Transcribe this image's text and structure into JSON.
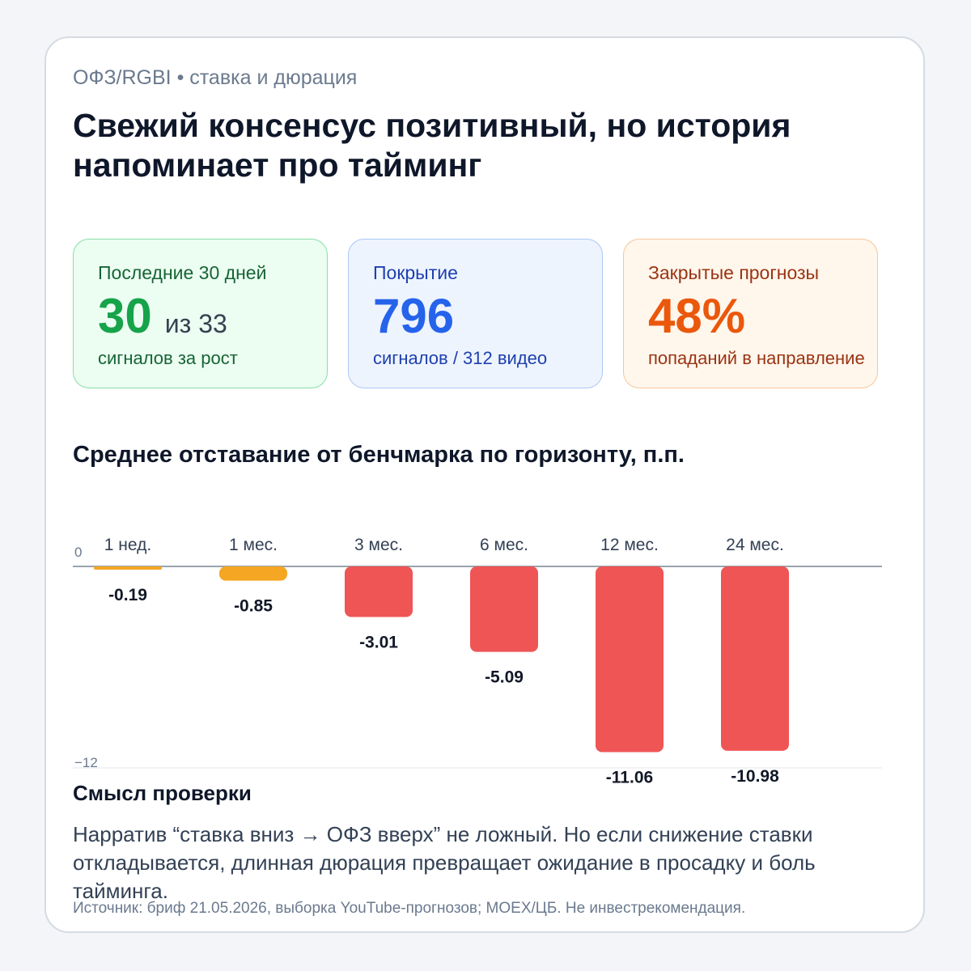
{
  "header": {
    "eyebrow": "ОФЗ/RGBI • ставка и дюрация",
    "title": "Свежий консенсус позитивный, но история напоминает про тайминг"
  },
  "kpis": [
    {
      "label": "Последние 30 дней",
      "value": "30",
      "value_suffix": "из 33",
      "sub": "сигналов за рост"
    },
    {
      "label": "Покрытие",
      "value": "796",
      "sub": "сигналов / 312 видео"
    },
    {
      "label": "Закрытые прогнозы",
      "value": "48%",
      "sub": "попаданий в направление"
    }
  ],
  "chart_data": {
    "type": "bar",
    "title": "Среднее отставание от бенчмарка по горизонту, п.п.",
    "categories": [
      "1 нед.",
      "1 мес.",
      "3 мес.",
      "6 мес.",
      "12 мес.",
      "24 мес."
    ],
    "values": [
      -0.19,
      -0.85,
      -3.01,
      -5.09,
      -11.06,
      -10.98
    ],
    "value_labels": [
      "-0.19",
      "-0.85",
      "-3.01",
      "-5.09",
      "-11.06",
      "-10.98"
    ],
    "ylim": [
      -12,
      0
    ],
    "yticks": [
      0,
      -12
    ],
    "ytick_labels": [
      "0",
      "−12"
    ],
    "colors": {
      "mild": "#f5a623",
      "severe": "#ef5555",
      "axis": "#9aa3ad",
      "grid": "#eceff3"
    },
    "mild_threshold": -1
  },
  "notes": {
    "title": "Смысл проверки",
    "text": "Нарратив “ставка вниз → ОФЗ вверх” не ложный. Но если снижение ставки откладывается, длинная дюрация превращает ожидание в просадку и боль тайминга."
  },
  "footer": {
    "source": "Источник: бриф 21.05.2026, выборка YouTube-прогнозов; MOEX/ЦБ. Не инвестрекомендация."
  }
}
